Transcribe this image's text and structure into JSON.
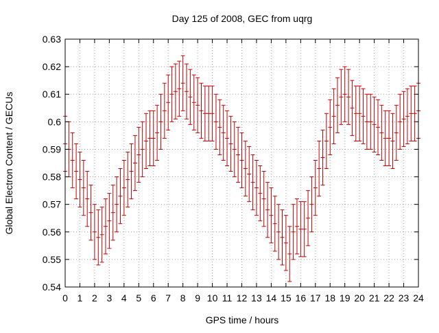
{
  "chart_data": {
    "type": "scatter",
    "title": "Day 125 of 2008, GEC from uqrg",
    "xlabel": "GPS time / hours",
    "ylabel": "Global Electron Content / GECUs",
    "xlim": [
      0,
      24
    ],
    "ylim": [
      0.54,
      0.63
    ],
    "xticks": [
      0,
      1,
      2,
      3,
      4,
      5,
      6,
      7,
      8,
      9,
      10,
      11,
      12,
      13,
      14,
      15,
      16,
      17,
      18,
      19,
      20,
      21,
      22,
      23,
      24
    ],
    "yticks": [
      0.54,
      0.55,
      0.56,
      0.57,
      0.58,
      0.59,
      0.6,
      0.61,
      0.62,
      0.63
    ],
    "ytick_labels": [
      "0.54",
      "0.55",
      "0.56",
      "0.57",
      "0.58",
      "0.59",
      "0.6",
      "0.61",
      "0.62",
      "0.63"
    ],
    "grid": true,
    "error_bar_half_width": 0.01,
    "series": [
      {
        "color": "#c00000",
        "x": [
          0,
          0.25,
          0.5,
          0.75,
          1,
          1.25,
          1.5,
          1.75,
          2,
          2.25,
          2.5,
          2.75,
          3,
          3.25,
          3.5,
          3.75,
          4,
          4.25,
          4.5,
          4.75,
          5,
          5.25,
          5.5,
          5.75,
          6,
          6.25,
          6.5,
          6.75,
          7,
          7.25,
          7.5,
          7.75,
          8,
          8.25,
          8.5,
          8.75,
          9,
          9.25,
          9.5,
          9.75,
          10,
          10.25,
          10.5,
          10.75,
          11,
          11.25,
          11.5,
          11.75,
          12,
          12.25,
          12.5,
          12.75,
          13,
          13.25,
          13.5,
          13.75,
          14,
          14.25,
          14.5,
          14.75,
          15,
          15.25,
          15.5,
          15.75,
          16,
          16.25,
          16.5,
          16.75,
          17,
          17.25,
          17.5,
          17.75,
          18,
          18.25,
          18.5,
          18.75,
          19,
          19.25,
          19.5,
          19.75,
          20,
          20.25,
          20.5,
          20.75,
          21,
          21.25,
          21.5,
          21.75,
          22,
          22.25,
          22.5,
          22.75,
          23,
          23.25,
          23.5,
          23.75,
          24
        ],
        "y": [
          0.592,
          0.59,
          0.586,
          0.582,
          0.579,
          0.576,
          0.572,
          0.567,
          0.56,
          0.558,
          0.559,
          0.562,
          0.564,
          0.567,
          0.57,
          0.573,
          0.576,
          0.579,
          0.582,
          0.585,
          0.588,
          0.59,
          0.593,
          0.594,
          0.594,
          0.596,
          0.6,
          0.604,
          0.607,
          0.61,
          0.611,
          0.612,
          0.614,
          0.611,
          0.609,
          0.607,
          0.606,
          0.604,
          0.603,
          0.603,
          0.603,
          0.6,
          0.598,
          0.596,
          0.594,
          0.592,
          0.59,
          0.588,
          0.586,
          0.583,
          0.581,
          0.578,
          0.576,
          0.574,
          0.572,
          0.568,
          0.566,
          0.563,
          0.56,
          0.558,
          0.556,
          0.552,
          0.56,
          0.562,
          0.561,
          0.561,
          0.565,
          0.57,
          0.576,
          0.583,
          0.587,
          0.593,
          0.598,
          0.602,
          0.606,
          0.609,
          0.61,
          0.609,
          0.605,
          0.603,
          0.603,
          0.602,
          0.6,
          0.6,
          0.599,
          0.598,
          0.596,
          0.594,
          0.594,
          0.593,
          0.596,
          0.6,
          0.601,
          0.602,
          0.603,
          0.603,
          0.604
        ]
      }
    ]
  }
}
